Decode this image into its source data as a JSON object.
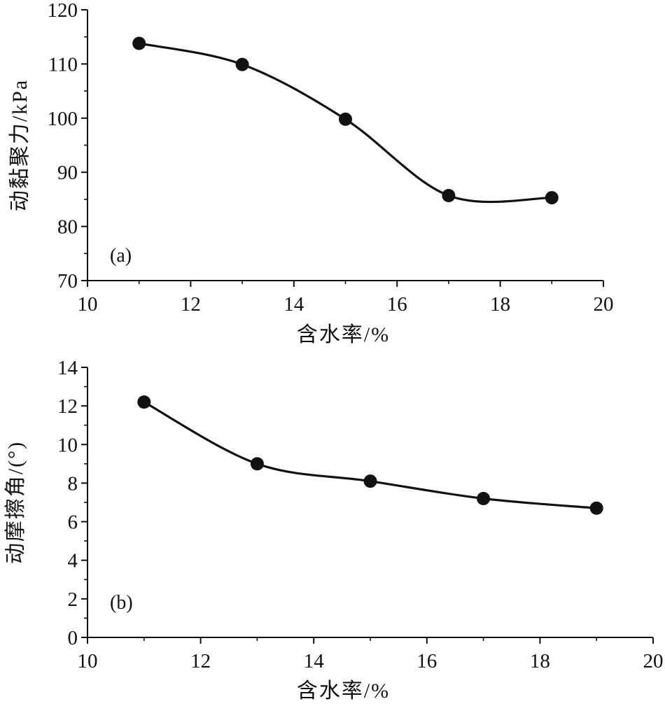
{
  "chart_data": [
    {
      "type": "line",
      "panel_label": "(a)",
      "xlabel": "含水率/%",
      "ylabel": "动黏聚力/kPa",
      "xlim": [
        10,
        20
      ],
      "ylim": [
        70,
        120
      ],
      "xticks": [
        10,
        12,
        14,
        16,
        18,
        20
      ],
      "yticks": [
        70,
        80,
        90,
        100,
        110,
        120
      ],
      "series": [
        {
          "x": [
            11,
            13,
            15,
            17,
            19
          ],
          "values": [
            113.8,
            109.9,
            99.8,
            85.7,
            85.3
          ]
        }
      ],
      "grid": false,
      "marker": "filled-circle",
      "color": "#111111"
    },
    {
      "type": "line",
      "panel_label": "(b)",
      "xlabel": "含水率/%",
      "ylabel": "动摩擦角/(°)",
      "xlim": [
        10,
        20
      ],
      "ylim": [
        0,
        14
      ],
      "xticks": [
        10,
        12,
        14,
        16,
        18,
        20
      ],
      "yticks": [
        0,
        2,
        4,
        6,
        8,
        10,
        12,
        14
      ],
      "series": [
        {
          "x": [
            11,
            13,
            15,
            17,
            19
          ],
          "values": [
            12.2,
            9.0,
            8.1,
            7.2,
            6.7
          ]
        }
      ],
      "grid": false,
      "marker": "filled-circle",
      "color": "#111111"
    }
  ]
}
